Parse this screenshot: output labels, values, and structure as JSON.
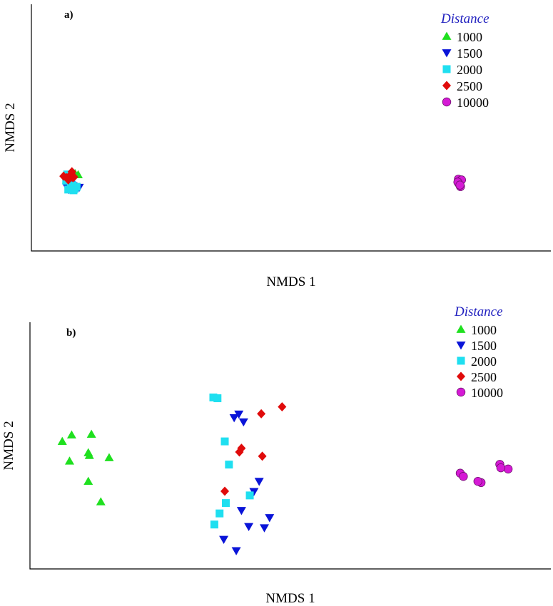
{
  "chart_data": [
    {
      "type": "scatter",
      "panel_label": "a)",
      "xlabel": "NMDS 1",
      "ylabel": "NMDS 2",
      "xlim": [
        0,
        100
      ],
      "ylim": [
        0,
        100
      ],
      "axis_ticks": false,
      "grid": false,
      "legend": {
        "title": "Distance",
        "title_color": "#1f1fbf",
        "position": "top-right"
      },
      "series": [
        {
          "name": "1000",
          "marker": "triangle-up",
          "color": "#1fe01f",
          "points": [
            [
              7.8,
              30.6
            ],
            [
              8.2,
              31.2
            ],
            [
              9.0,
              30.9
            ],
            [
              8.4,
              31.4
            ]
          ]
        },
        {
          "name": "1500",
          "marker": "triangle-down",
          "color": "#0a14d8",
          "points": [
            [
              6.8,
              26.1
            ],
            [
              7.2,
              24.9
            ],
            [
              8.6,
              25.5
            ],
            [
              9.2,
              25.8
            ],
            [
              7.6,
              27.0
            ],
            [
              8.0,
              26.4
            ]
          ]
        },
        {
          "name": "2000",
          "marker": "square",
          "color": "#1fdff0",
          "points": [
            [
              6.7,
              28.5
            ],
            [
              7.1,
              24.9
            ],
            [
              7.6,
              25.7
            ],
            [
              8.3,
              25.2
            ],
            [
              8.7,
              26.0
            ],
            [
              7.9,
              26.6
            ],
            [
              6.9,
              31.0
            ],
            [
              8.1,
              24.6
            ]
          ]
        },
        {
          "name": "2500",
          "marker": "diamond",
          "color": "#e00b0b",
          "points": [
            [
              6.2,
              30.3
            ],
            [
              7.1,
              28.8
            ],
            [
              7.7,
              31.2
            ],
            [
              8.0,
              29.7
            ],
            [
              7.5,
              30.0
            ],
            [
              6.8,
              29.7
            ],
            [
              7.8,
              32.1
            ],
            [
              8.2,
              30.0
            ]
          ]
        },
        {
          "name": "10000",
          "marker": "circle",
          "color": "#d51ad5",
          "points": [
            [
              82.2,
              29.1
            ],
            [
              82.6,
              26.1
            ],
            [
              82.3,
              27.3
            ],
            [
              82.8,
              28.8
            ],
            [
              82.1,
              27.9
            ],
            [
              82.5,
              26.7
            ]
          ]
        }
      ]
    },
    {
      "type": "scatter",
      "panel_label": "b)",
      "xlabel": "NMDS 1",
      "ylabel": "NMDS 2",
      "xlim": [
        0,
        100
      ],
      "ylim": [
        0,
        100
      ],
      "axis_ticks": false,
      "grid": false,
      "legend": {
        "title": "Distance",
        "title_color": "#1f1fbf",
        "position": "top-right"
      },
      "series": [
        {
          "name": "1000",
          "marker": "triangle-up",
          "color": "#1fe01f",
          "points": [
            [
              6.2,
              51.7
            ],
            [
              8.0,
              54.3
            ],
            [
              11.8,
              54.6
            ],
            [
              11.2,
              47.1
            ],
            [
              11.4,
              46.0
            ],
            [
              15.2,
              45.1
            ],
            [
              7.6,
              43.7
            ],
            [
              11.2,
              35.5
            ],
            [
              13.6,
              27.2
            ]
          ]
        },
        {
          "name": "1500",
          "marker": "triangle-down",
          "color": "#0a14d8",
          "points": [
            [
              39.2,
              61.3
            ],
            [
              41.0,
              59.6
            ],
            [
              40.1,
              62.8
            ],
            [
              44.0,
              35.5
            ],
            [
              43.0,
              31.4
            ],
            [
              40.6,
              23.7
            ],
            [
              46.0,
              20.8
            ],
            [
              42.0,
              17.2
            ],
            [
              45.0,
              16.7
            ],
            [
              39.6,
              7.4
            ],
            [
              37.2,
              12.0
            ]
          ]
        },
        {
          "name": "2000",
          "marker": "square",
          "color": "#1fdff0",
          "points": [
            [
              35.2,
              69.5
            ],
            [
              36.0,
              69.2
            ],
            [
              37.4,
              51.7
            ],
            [
              38.2,
              42.3
            ],
            [
              42.2,
              29.8
            ],
            [
              37.6,
              26.7
            ],
            [
              36.4,
              22.5
            ],
            [
              35.4,
              18.0
            ]
          ]
        },
        {
          "name": "2500",
          "marker": "diamond",
          "color": "#e00b0b",
          "points": [
            [
              44.4,
              62.9
            ],
            [
              48.4,
              65.7
            ],
            [
              40.6,
              48.9
            ],
            [
              40.2,
              47.4
            ],
            [
              44.6,
              45.7
            ],
            [
              37.4,
              31.5
            ]
          ]
        },
        {
          "name": "10000",
          "marker": "circle",
          "color": "#d51ad5",
          "points": [
            [
              82.6,
              38.8
            ],
            [
              83.2,
              37.5
            ],
            [
              86.6,
              35.0
            ],
            [
              86.0,
              35.5
            ],
            [
              90.2,
              42.4
            ],
            [
              91.8,
              40.5
            ],
            [
              90.4,
              41.0
            ]
          ]
        }
      ]
    }
  ]
}
